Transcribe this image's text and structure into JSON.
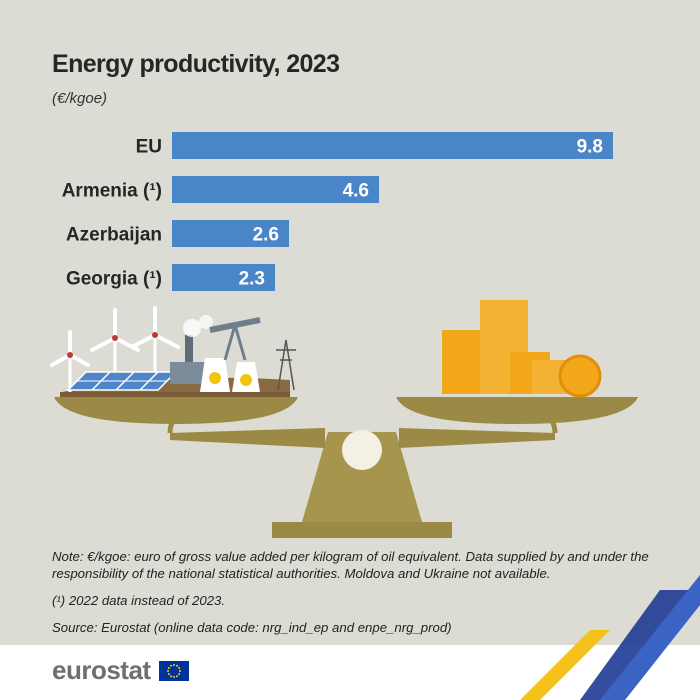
{
  "header": {
    "title": "Energy productivity,  2023",
    "unit": "(€/kgoe)"
  },
  "colors": {
    "bar": "#4a85c8",
    "background": "#dddcd4",
    "scale": "#9b8a45"
  },
  "chart_data": {
    "type": "bar",
    "orientation": "horizontal",
    "categories": [
      "EU",
      "Armenia (¹)",
      "Azerbaijan",
      "Georgia (¹)"
    ],
    "values": [
      9.8,
      4.6,
      2.6,
      2.3
    ],
    "value_labels": [
      "9.8",
      "4.6",
      "2.6",
      "2.3"
    ],
    "title": "Energy productivity,  2023",
    "ylabel": "(€/kgoe)",
    "xlim": [
      0,
      9.8
    ],
    "grid": false,
    "legend": "none"
  },
  "notes": {
    "note": "Note: €/kgoe: euro of gross value added per kilogram of oil equivalent. Data supplied by and under the responsibility of the national statistical authorities. Moldova and Ukraine not available.",
    "footnote": "(¹) 2022 data instead of 2023.",
    "source": "Source: Eurostat (online data code: nrg_ind_ep and enpe_nrg_prod)"
  },
  "footer": {
    "logo_text": "eurostat",
    "flag_icon": "eu-flag-icon"
  }
}
